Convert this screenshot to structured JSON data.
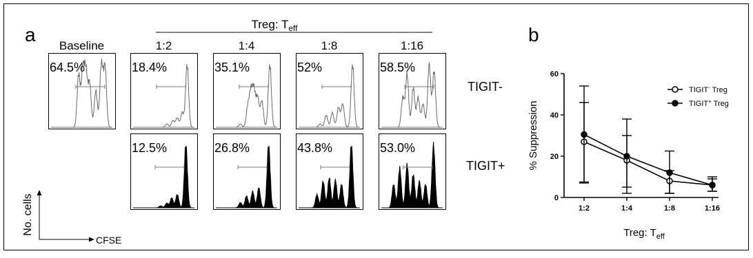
{
  "panel_a": {
    "label": "a",
    "header_main": "Treg: T",
    "header_sub": "eff",
    "columns": [
      "Baseline",
      "1:2",
      "1:4",
      "1:8",
      "1:16"
    ],
    "rows": [
      {
        "label": "TIGIT-",
        "percents": [
          "64.5%",
          "18.4%",
          "35.1%",
          "52%",
          "58.5%"
        ]
      },
      {
        "label": "TIGIT+",
        "percents": [
          "",
          "12.5%",
          "26.8%",
          "43.8%",
          "53.0%"
        ]
      }
    ],
    "y_axis_label": "No. cells",
    "x_axis_label": "CFSE"
  },
  "panel_b": {
    "label": "b"
  },
  "chart_data": {
    "type": "line",
    "title": "",
    "categories": [
      "1:2",
      "1:4",
      "1:8",
      "1:16"
    ],
    "xlabel_main": "Treg: T",
    "xlabel_sub": "eff",
    "ylabel": "% Suppression",
    "ylim": [
      0,
      60
    ],
    "yticks": [
      "0",
      "20",
      "40",
      "60"
    ],
    "grid": false,
    "legend_position": "top-right",
    "series": [
      {
        "legend_main": "TIGIT",
        "legend_sup": "-",
        "legend_tail": " Treg",
        "marker": "open-circle",
        "values": [
          27,
          18,
          8,
          6
        ],
        "error_low": [
          7,
          5,
          2,
          3
        ],
        "error_high": [
          46,
          30,
          13,
          9
        ]
      },
      {
        "legend_main": "TIGIT",
        "legend_sup": "+",
        "legend_tail": " Treg",
        "marker": "filled-circle",
        "values": [
          30.5,
          20,
          12,
          6
        ],
        "error_low": [
          7.5,
          2,
          2,
          3
        ],
        "error_high": [
          54,
          38,
          22.5,
          10
        ]
      }
    ],
    "colors": {
      "line": "#000000",
      "hist_open": "#666666",
      "hist_fill": "#000000"
    }
  }
}
